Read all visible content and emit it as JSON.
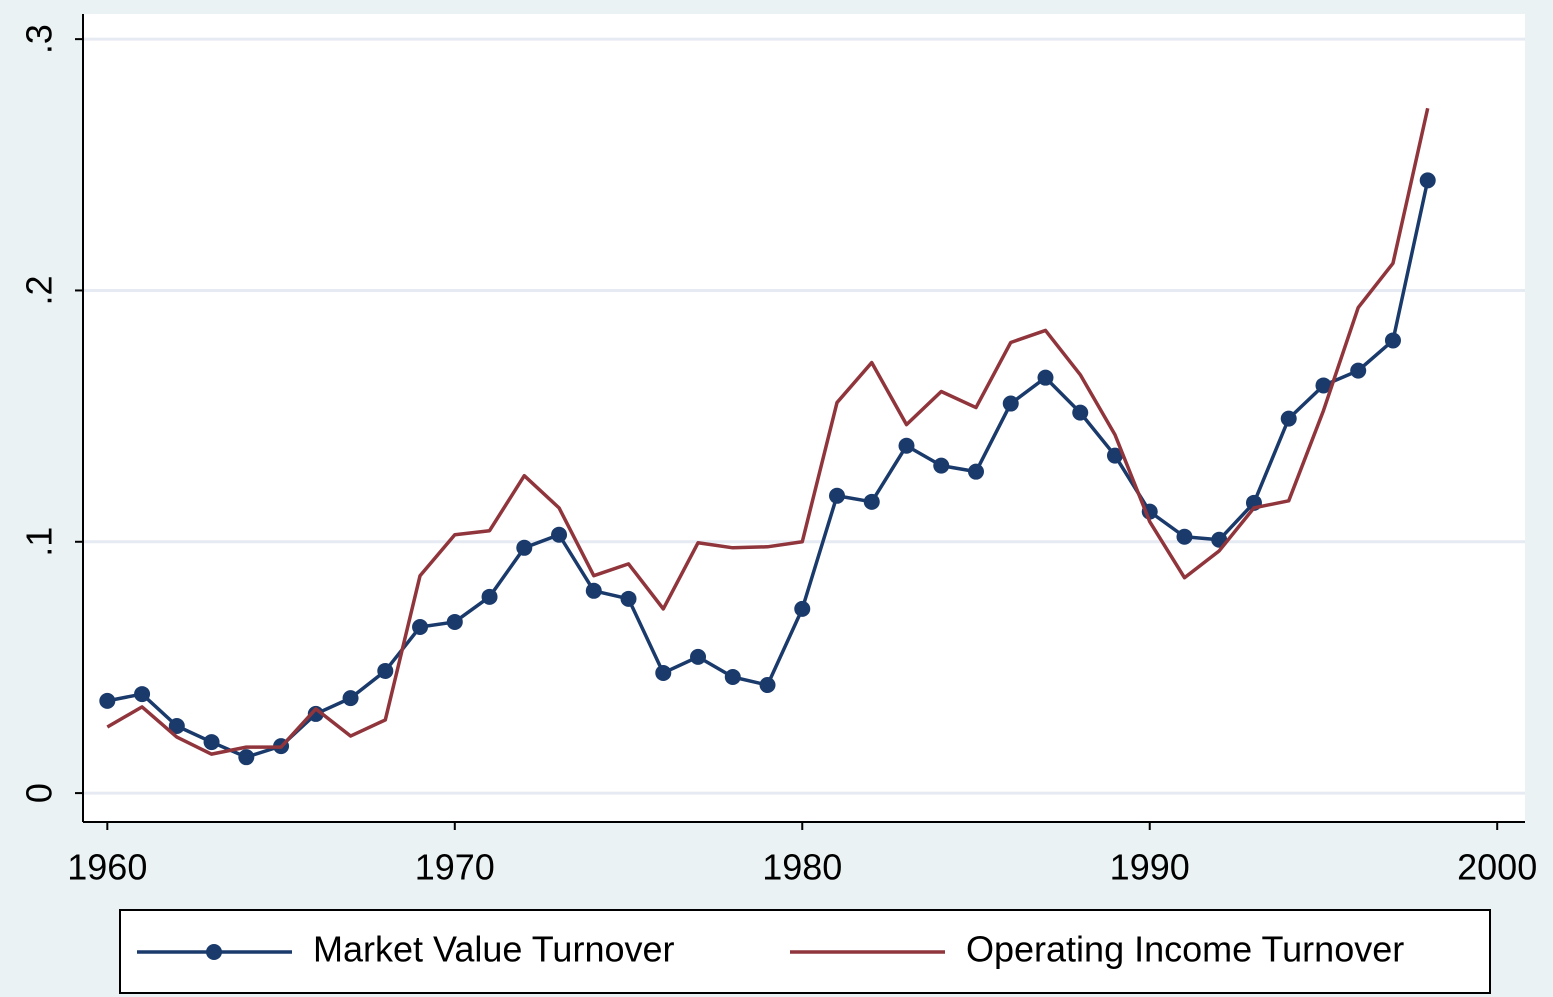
{
  "chart_data": {
    "type": "line",
    "x": [
      1960,
      1961,
      1962,
      1963,
      1964,
      1965,
      1966,
      1967,
      1968,
      1969,
      1970,
      1971,
      1972,
      1973,
      1974,
      1975,
      1976,
      1977,
      1978,
      1979,
      1980,
      1981,
      1982,
      1983,
      1984,
      1985,
      1986,
      1987,
      1988,
      1989,
      1990,
      1991,
      1992,
      1993,
      1994,
      1995,
      1996,
      1997,
      1998
    ],
    "series": [
      {
        "name": "Market Value Turnover",
        "color": "#1a3a6b",
        "markers": true,
        "values": [
          0.0367,
          0.0394,
          0.0267,
          0.0203,
          0.0143,
          0.0187,
          0.0315,
          0.0378,
          0.0486,
          0.0661,
          0.0681,
          0.0781,
          0.0976,
          0.1028,
          0.0805,
          0.0773,
          0.0478,
          0.0542,
          0.0462,
          0.043,
          0.0733,
          0.1183,
          0.1159,
          0.1382,
          0.1303,
          0.1279,
          0.155,
          0.1653,
          0.1514,
          0.1343,
          0.112,
          0.102,
          0.1008,
          0.1155,
          0.149,
          0.1622,
          0.1681,
          0.1801,
          0.2438
        ]
      },
      {
        "name": "Operating Income Turnover",
        "color": "#90353b",
        "markers": false,
        "values": [
          0.0263,
          0.0343,
          0.0223,
          0.0155,
          0.0183,
          0.0183,
          0.0335,
          0.0227,
          0.0291,
          0.0865,
          0.1028,
          0.1044,
          0.1263,
          0.1135,
          0.0865,
          0.0912,
          0.0733,
          0.0996,
          0.0976,
          0.098,
          0.1,
          0.1554,
          0.1713,
          0.1466,
          0.1598,
          0.1534,
          0.1793,
          0.1841,
          0.1665,
          0.1426,
          0.108,
          0.0857,
          0.0964,
          0.1135,
          0.1163,
          0.1522,
          0.1932,
          0.2108,
          0.2725
        ]
      }
    ],
    "xlim": [
      1959.3,
      2000.8
    ],
    "xticks": [
      1960,
      1970,
      1980,
      1990,
      2000
    ],
    "ylim": [
      -0.0115,
      0.31
    ],
    "yticks": [
      0,
      {
        "value": 0.1,
        "label": ".1"
      },
      {
        "value": 0.2,
        "label": ".2"
      },
      {
        "value": 0.3,
        "label": ".3"
      }
    ],
    "grid": true,
    "legend": "bottom"
  }
}
